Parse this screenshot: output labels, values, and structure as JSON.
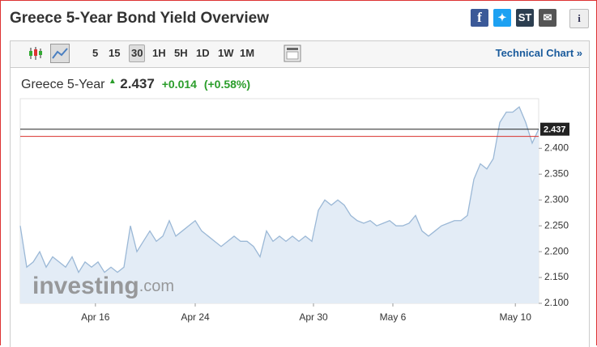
{
  "header": {
    "title": "Greece 5-Year Bond Yield Overview",
    "stocktwits": "ST",
    "info": "i"
  },
  "toolbar": {
    "intervals": [
      "5",
      "15",
      "30",
      "1H",
      "5H",
      "1D",
      "1W",
      "1M"
    ],
    "selected": "30",
    "link": "Technical Chart »"
  },
  "quote": {
    "name": "Greece 5-Year",
    "last": 2.437,
    "change": "+0.014",
    "change_pct": "(+0.58%)"
  },
  "watermark": {
    "brand": "investing",
    "suffix": ".com"
  },
  "chart_data": {
    "type": "area",
    "line_color": "#9bb8d6",
    "fill_color": "#e3ecf6",
    "values": [
      2.25,
      2.17,
      2.18,
      2.2,
      2.17,
      2.19,
      2.18,
      2.17,
      2.19,
      2.16,
      2.18,
      2.17,
      2.18,
      2.16,
      2.17,
      2.16,
      2.17,
      2.25,
      2.2,
      2.22,
      2.24,
      2.22,
      2.23,
      2.26,
      2.23,
      2.24,
      2.25,
      2.26,
      2.24,
      2.23,
      2.22,
      2.21,
      2.22,
      2.23,
      2.22,
      2.22,
      2.21,
      2.19,
      2.24,
      2.22,
      2.23,
      2.22,
      2.23,
      2.22,
      2.23,
      2.22,
      2.28,
      2.3,
      2.29,
      2.3,
      2.29,
      2.27,
      2.26,
      2.255,
      2.26,
      2.25,
      2.255,
      2.26,
      2.25,
      2.25,
      2.255,
      2.27,
      2.24,
      2.23,
      2.24,
      2.25,
      2.255,
      2.26,
      2.26,
      2.27,
      2.34,
      2.37,
      2.36,
      2.38,
      2.45,
      2.47,
      2.47,
      2.48,
      2.45,
      2.41,
      2.437
    ],
    "xlim": [
      0,
      80
    ],
    "xticks": [
      {
        "value": 11.6,
        "label": "Apr 16"
      },
      {
        "value": 27,
        "label": "Apr 24"
      },
      {
        "value": 45.25,
        "label": "Apr 30"
      },
      {
        "value": 57.5,
        "label": "May 6"
      },
      {
        "value": 76.4,
        "label": "May 10"
      }
    ],
    "ylim": [
      2.1,
      2.496
    ],
    "yticks": [
      {
        "value": 2.1,
        "label": "2.100"
      },
      {
        "value": 2.15,
        "label": "2.150"
      },
      {
        "value": 2.2,
        "label": "2.200"
      },
      {
        "value": 2.25,
        "label": "2.250"
      },
      {
        "value": 2.3,
        "label": "2.300"
      },
      {
        "value": 2.35,
        "label": "2.350"
      },
      {
        "value": 2.4,
        "label": "2.400"
      }
    ],
    "previous_close": 2.423,
    "previous_close_color": "#d9302c",
    "last_color": "#222222"
  }
}
